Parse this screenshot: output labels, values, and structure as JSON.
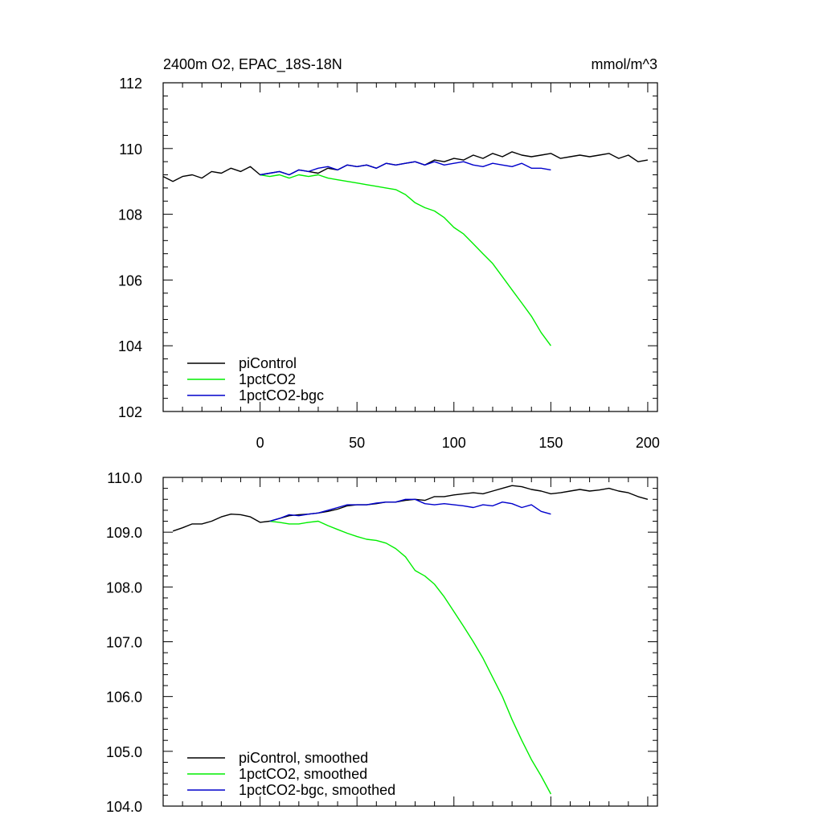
{
  "colors": {
    "piControl": "#000000",
    "1pctCO2": "#00ee00",
    "1pctCO2-bgc": "#0000cc"
  },
  "chart_data": [
    {
      "type": "line",
      "title": "2400m O2, EPAC_18S-18N",
      "units": "mmol/m^3",
      "xlim": [
        -50,
        205
      ],
      "ylim": [
        102,
        112
      ],
      "xticks": [
        0,
        50,
        100,
        150,
        200
      ],
      "xtick_labels": [
        "0",
        "50",
        "100",
        "150",
        "200"
      ],
      "yticks": [
        102,
        104,
        106,
        108,
        110,
        112
      ],
      "ytick_labels": [
        "102",
        "104",
        "106",
        "108",
        "110",
        "112"
      ],
      "grid": false,
      "legend_position": "bottom-left",
      "series": [
        {
          "name": "piControl",
          "color_key": "piControl",
          "x": [
            -50,
            -45,
            -40,
            -35,
            -30,
            -25,
            -20,
            -15,
            -10,
            -5,
            0,
            5,
            10,
            15,
            20,
            25,
            30,
            35,
            40,
            45,
            50,
            55,
            60,
            65,
            70,
            75,
            80,
            85,
            90,
            95,
            100,
            105,
            110,
            115,
            120,
            125,
            130,
            135,
            140,
            145,
            150,
            155,
            160,
            165,
            170,
            175,
            180,
            185,
            190,
            195,
            200
          ],
          "y": [
            109.15,
            109.0,
            109.15,
            109.2,
            109.1,
            109.3,
            109.25,
            109.4,
            109.3,
            109.45,
            109.2,
            109.25,
            109.3,
            109.2,
            109.35,
            109.3,
            109.25,
            109.4,
            109.35,
            109.5,
            109.45,
            109.5,
            109.4,
            109.55,
            109.5,
            109.55,
            109.6,
            109.5,
            109.65,
            109.6,
            109.7,
            109.65,
            109.8,
            109.7,
            109.85,
            109.75,
            109.9,
            109.8,
            109.75,
            109.8,
            109.85,
            109.7,
            109.75,
            109.8,
            109.75,
            109.8,
            109.85,
            109.7,
            109.8,
            109.6,
            109.65
          ]
        },
        {
          "name": "1pctCO2",
          "color_key": "1pctCO2",
          "x": [
            0,
            5,
            10,
            15,
            20,
            25,
            30,
            35,
            40,
            45,
            50,
            55,
            60,
            65,
            70,
            75,
            80,
            85,
            90,
            95,
            100,
            105,
            110,
            115,
            120,
            125,
            130,
            135,
            140,
            145,
            150
          ],
          "y": [
            109.2,
            109.15,
            109.2,
            109.1,
            109.2,
            109.15,
            109.2,
            109.1,
            109.05,
            109.0,
            108.95,
            108.9,
            108.85,
            108.8,
            108.75,
            108.6,
            108.35,
            108.2,
            108.1,
            107.9,
            107.6,
            107.4,
            107.1,
            106.8,
            106.5,
            106.1,
            105.7,
            105.3,
            104.9,
            104.4,
            104.0
          ]
        },
        {
          "name": "1pctCO2-bgc",
          "color_key": "1pctCO2-bgc",
          "x": [
            0,
            5,
            10,
            15,
            20,
            25,
            30,
            35,
            40,
            45,
            50,
            55,
            60,
            65,
            70,
            75,
            80,
            85,
            90,
            95,
            100,
            105,
            110,
            115,
            120,
            125,
            130,
            135,
            140,
            145,
            150
          ],
          "y": [
            109.2,
            109.25,
            109.3,
            109.2,
            109.35,
            109.3,
            109.4,
            109.45,
            109.35,
            109.5,
            109.45,
            109.5,
            109.4,
            109.55,
            109.5,
            109.55,
            109.6,
            109.5,
            109.6,
            109.5,
            109.55,
            109.6,
            109.5,
            109.45,
            109.55,
            109.5,
            109.45,
            109.55,
            109.4,
            109.4,
            109.35
          ]
        }
      ]
    },
    {
      "type": "line",
      "ylim": [
        104.0,
        110.0
      ],
      "xlim": [
        -50,
        205
      ],
      "xticks": [
        0,
        50,
        100,
        150,
        200
      ],
      "yticks": [
        104.0,
        105.0,
        106.0,
        107.0,
        108.0,
        109.0,
        110.0
      ],
      "ytick_labels": [
        "104.0",
        "105.0",
        "106.0",
        "107.0",
        "108.0",
        "109.0",
        "110.0"
      ],
      "grid": false,
      "legend_position": "bottom-left",
      "series": [
        {
          "name": "piControl, smoothed",
          "color_key": "piControl",
          "x": [
            -45,
            -40,
            -35,
            -30,
            -25,
            -20,
            -15,
            -10,
            -5,
            0,
            5,
            10,
            15,
            20,
            25,
            30,
            35,
            40,
            45,
            50,
            55,
            60,
            65,
            70,
            75,
            80,
            85,
            90,
            95,
            100,
            105,
            110,
            115,
            120,
            125,
            130,
            135,
            140,
            145,
            150,
            155,
            160,
            165,
            170,
            175,
            180,
            185,
            190,
            195,
            200
          ],
          "y": [
            109.02,
            109.08,
            109.15,
            109.15,
            109.2,
            109.28,
            109.33,
            109.32,
            109.28,
            109.18,
            109.2,
            109.25,
            109.3,
            109.32,
            109.33,
            109.35,
            109.38,
            109.42,
            109.48,
            109.5,
            109.5,
            109.52,
            109.55,
            109.55,
            109.58,
            109.6,
            109.58,
            109.65,
            109.65,
            109.68,
            109.7,
            109.72,
            109.7,
            109.75,
            109.8,
            109.85,
            109.83,
            109.78,
            109.75,
            109.7,
            109.72,
            109.75,
            109.78,
            109.75,
            109.77,
            109.8,
            109.75,
            109.72,
            109.65,
            109.6
          ]
        },
        {
          "name": "1pctCO2, smoothed",
          "color_key": "1pctCO2",
          "x": [
            5,
            10,
            15,
            20,
            25,
            30,
            35,
            40,
            45,
            50,
            55,
            60,
            65,
            70,
            75,
            80,
            85,
            90,
            95,
            100,
            105,
            110,
            115,
            120,
            125,
            130,
            135,
            140,
            145,
            150
          ],
          "y": [
            109.2,
            109.18,
            109.15,
            109.15,
            109.18,
            109.2,
            109.12,
            109.05,
            108.98,
            108.92,
            108.87,
            108.85,
            108.8,
            108.7,
            108.55,
            108.3,
            108.2,
            108.05,
            107.82,
            107.55,
            107.28,
            107.0,
            106.7,
            106.35,
            106.0,
            105.58,
            105.2,
            104.85,
            104.55,
            104.22
          ]
        },
        {
          "name": "1pctCO2-bgc, smoothed",
          "color_key": "1pctCO2-bgc",
          "x": [
            5,
            10,
            15,
            20,
            25,
            30,
            35,
            40,
            45,
            50,
            55,
            60,
            65,
            70,
            75,
            80,
            85,
            90,
            95,
            100,
            105,
            110,
            115,
            120,
            125,
            130,
            135,
            140,
            145,
            150
          ],
          "y": [
            109.2,
            109.25,
            109.32,
            109.3,
            109.33,
            109.35,
            109.4,
            109.45,
            109.5,
            109.5,
            109.5,
            109.53,
            109.55,
            109.55,
            109.6,
            109.6,
            109.52,
            109.5,
            109.52,
            109.5,
            109.48,
            109.45,
            109.5,
            109.48,
            109.55,
            109.52,
            109.45,
            109.5,
            109.38,
            109.33
          ]
        }
      ]
    }
  ]
}
